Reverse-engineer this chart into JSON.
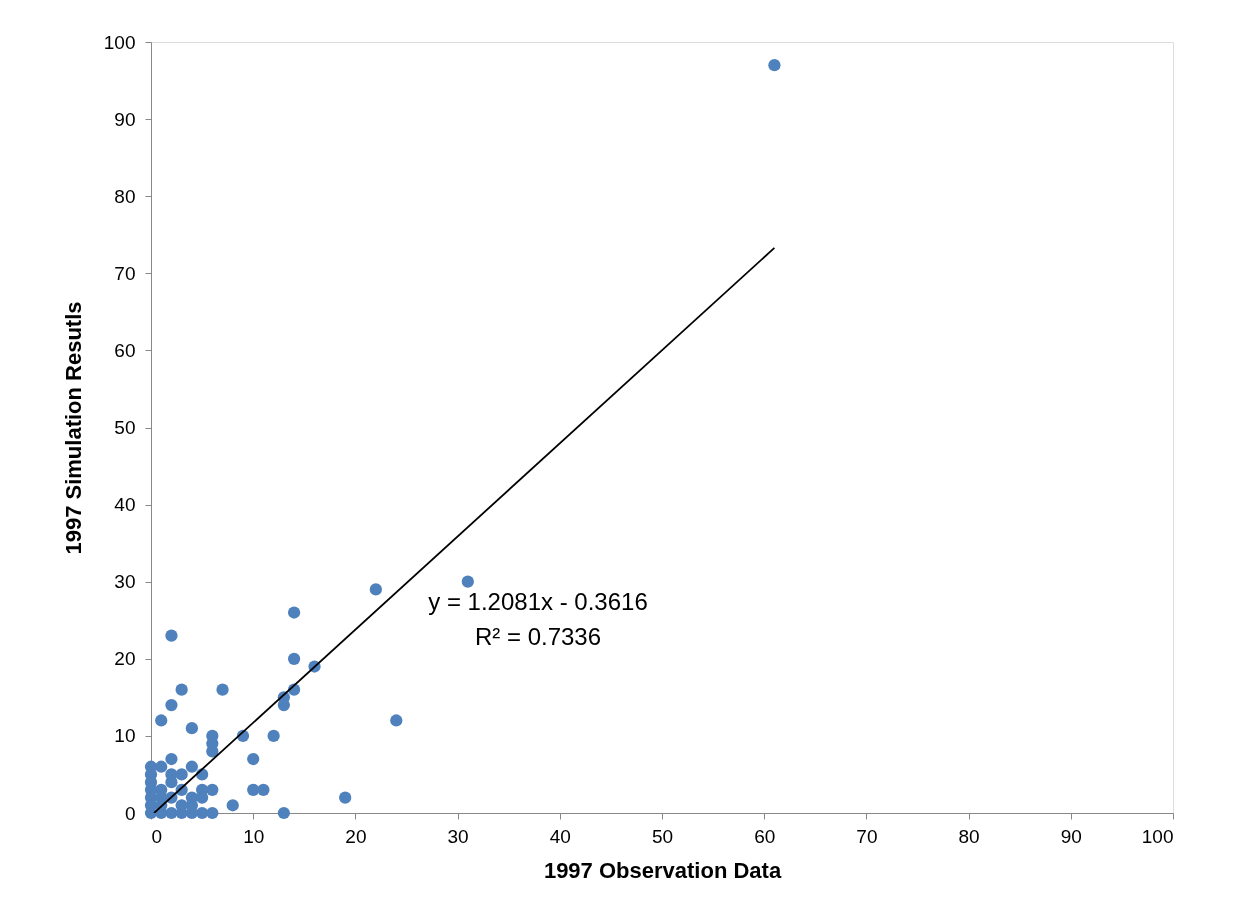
{
  "chart_data": {
    "type": "scatter",
    "xlabel": "1997 Observation Data",
    "ylabel": "1997 Simulation Resutls",
    "xlim": [
      0,
      100
    ],
    "ylim": [
      0,
      100
    ],
    "xticks": [
      0,
      10,
      20,
      30,
      40,
      50,
      60,
      70,
      80,
      90,
      100
    ],
    "yticks": [
      0,
      10,
      20,
      30,
      40,
      50,
      60,
      70,
      80,
      90,
      100
    ],
    "grid": false,
    "series": [
      {
        "marker": "circle",
        "color": "#4f81bd",
        "x": [
          61,
          31,
          22,
          14,
          2,
          14,
          16,
          3,
          7,
          14,
          13,
          13,
          2,
          1,
          24,
          4,
          6,
          9,
          12,
          6,
          6,
          2,
          10,
          0,
          1,
          4,
          0,
          2,
          3,
          5,
          0,
          2,
          0,
          1,
          3,
          5,
          6,
          10,
          11,
          0,
          1,
          2,
          4,
          5,
          19,
          0,
          1,
          3,
          4,
          8,
          0,
          1,
          2,
          3,
          4,
          5,
          6,
          13
        ],
        "values": [
          97,
          30,
          29,
          26,
          23,
          20,
          19,
          16,
          16,
          16,
          15,
          14,
          14,
          12,
          12,
          11,
          10,
          10,
          10,
          9,
          8,
          7,
          7,
          6,
          6,
          6,
          5,
          5,
          5,
          5,
          4,
          4,
          3,
          3,
          3,
          3,
          3,
          3,
          3,
          2,
          2,
          2,
          2,
          2,
          2,
          1,
          1,
          1,
          1,
          1,
          0,
          0,
          0,
          0,
          0,
          0,
          0,
          0
        ]
      },
      {
        "type": "line",
        "color": "#000000",
        "x": [
          0.3,
          61
        ],
        "values": [
          0,
          73.3
        ]
      }
    ],
    "annotations": [
      "y = 1.2081x - 0.3616",
      "R² = 0.7336"
    ]
  }
}
